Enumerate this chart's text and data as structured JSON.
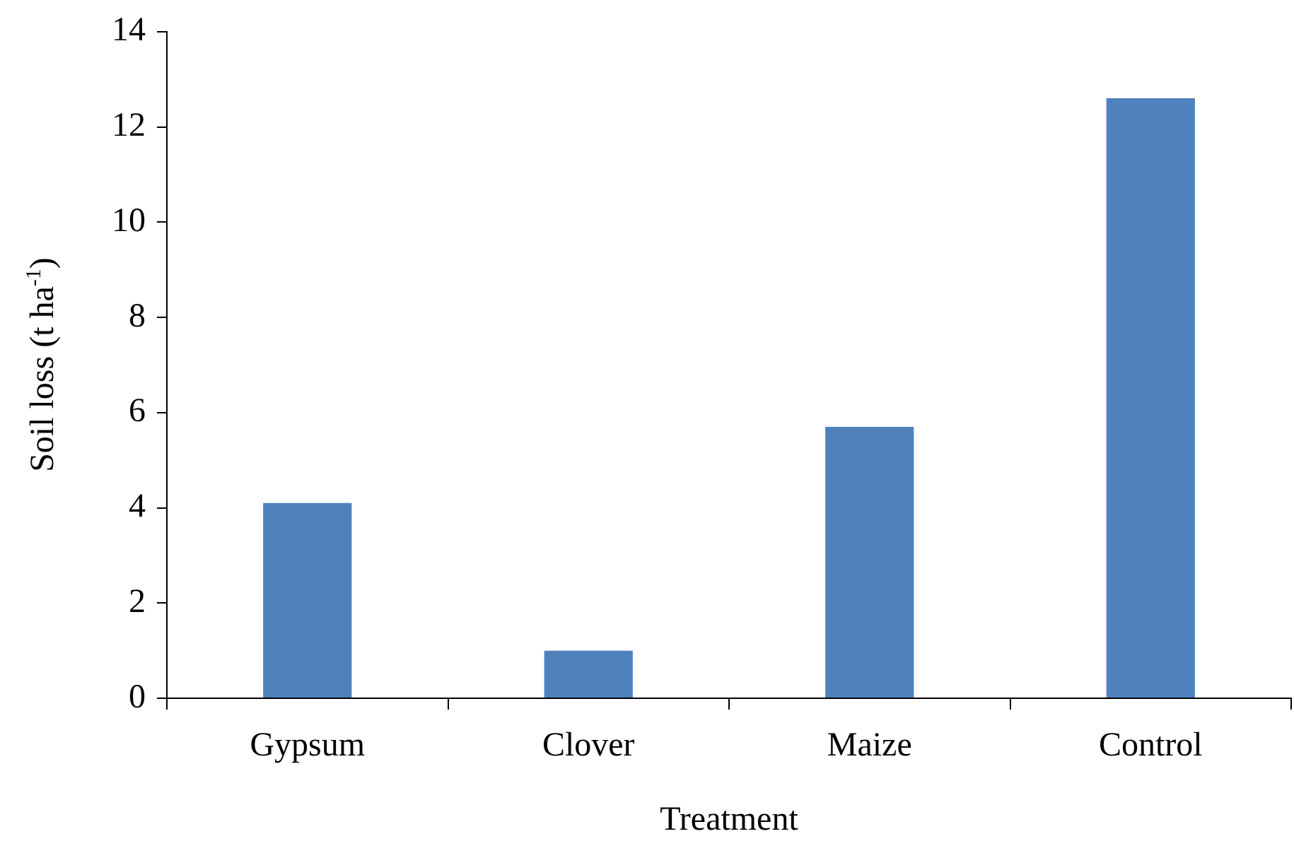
{
  "chart_data": {
    "type": "bar",
    "xlabel": "Treatment",
    "ylabel": "Soil loss (t ha$^{-1}$)",
    "categories": [
      "Gypsum",
      "Clover",
      "Maize",
      "Control"
    ],
    "values": [
      4.1,
      1.0,
      5.7,
      12.6
    ],
    "color": "#4f81bd",
    "ylim": [
      0,
      14
    ],
    "yticks": [
      0,
      2,
      4,
      6,
      8,
      10,
      12,
      14
    ]
  }
}
